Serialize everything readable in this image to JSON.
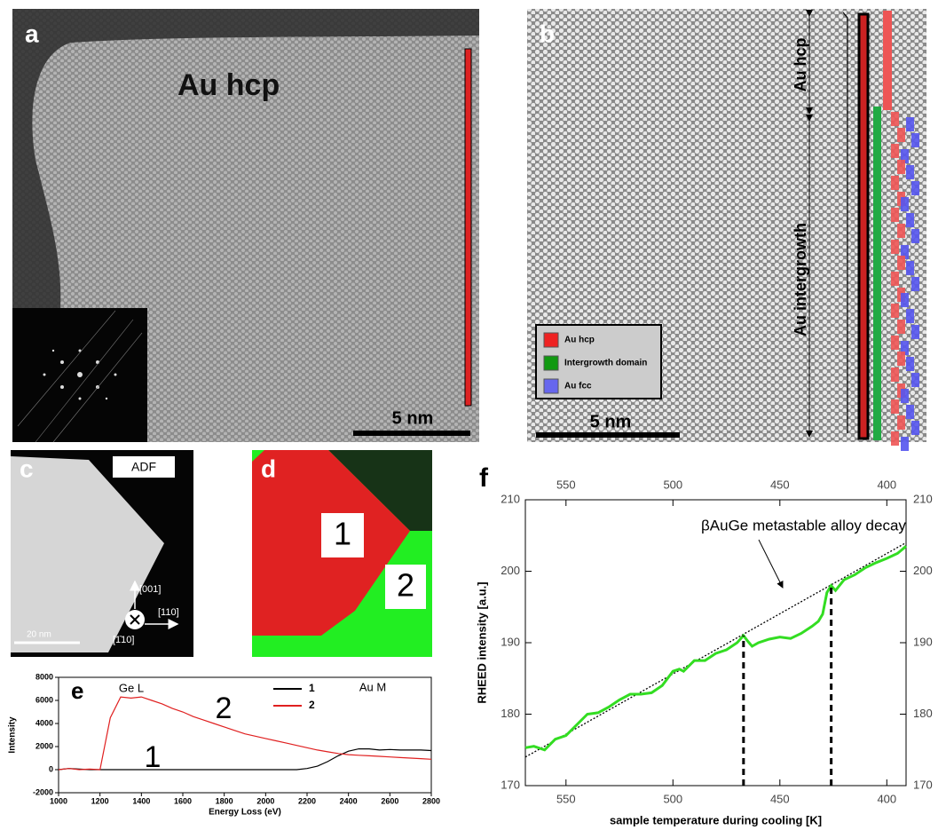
{
  "panels": {
    "a": {
      "label": "a",
      "title": "Au hcp",
      "scale": "5 nm"
    },
    "b": {
      "label": "b",
      "hcp_label": "Au hcp",
      "intergrowth_label": "Au intergrowth",
      "legend": [
        {
          "name": "Au hcp",
          "color": "#ee2222"
        },
        {
          "name": "Intergrowth domain",
          "color": "#119911"
        },
        {
          "name": "Au fcc",
          "color": "#6666ee"
        }
      ],
      "scale": "5 nm"
    },
    "c": {
      "label": "c",
      "mode": "ADF",
      "directions": [
        "[001]",
        "[110]",
        "[1̄10]"
      ],
      "scale": "20 nm"
    },
    "d": {
      "label": "d",
      "regions": [
        "1",
        "2"
      ]
    }
  },
  "chart_data": [
    {
      "type": "line",
      "panel_label": "e",
      "xlabel": "Energy Loss (eV)",
      "ylabel": "Intensity",
      "x": [
        1000,
        1050,
        1100,
        1150,
        1200,
        1250,
        1300,
        1350,
        1400,
        1450,
        1500,
        1550,
        1600,
        1650,
        1700,
        1750,
        1800,
        1850,
        1900,
        1950,
        2000,
        2050,
        2100,
        2150,
        2200,
        2250,
        2300,
        2350,
        2400,
        2450,
        2500,
        2550,
        2600,
        2650,
        2700,
        2750,
        2800
      ],
      "series": [
        {
          "name": "1",
          "color": "#000000",
          "values": [
            0,
            100,
            50,
            0,
            0,
            0,
            0,
            0,
            0,
            0,
            0,
            0,
            0,
            0,
            0,
            0,
            0,
            0,
            0,
            0,
            0,
            0,
            0,
            0,
            100,
            300,
            700,
            1200,
            1600,
            1800,
            1800,
            1700,
            1750,
            1700,
            1700,
            1700,
            1650
          ]
        },
        {
          "name": "2",
          "color": "#e02020",
          "values": [
            0,
            100,
            0,
            50,
            0,
            4500,
            6300,
            6200,
            6300,
            6000,
            5700,
            5300,
            5000,
            4600,
            4300,
            4000,
            3700,
            3400,
            3100,
            2900,
            2700,
            2500,
            2300,
            2100,
            1900,
            1700,
            1550,
            1400,
            1300,
            1250,
            1200,
            1150,
            1100,
            1050,
            1000,
            950,
            900
          ]
        }
      ],
      "annotations": [
        "Ge L",
        "Au M",
        "1",
        "2"
      ],
      "xlim": [
        1000,
        2800
      ],
      "xticks": [
        1000,
        1200,
        1400,
        1600,
        1800,
        2000,
        2200,
        2400,
        2600,
        2800
      ],
      "ylim": [
        -2000,
        8000
      ],
      "yticks": [
        -2000,
        0,
        2000,
        4000,
        6000,
        8000
      ]
    },
    {
      "type": "line",
      "panel_label": "f",
      "xlabel": "sample temperature during cooling [K]",
      "ylabel": "RHEED intensity [a.u.]",
      "annotation": "βAuGe metastable alloy decay",
      "x": [
        569,
        565,
        560,
        555,
        550,
        545,
        540,
        535,
        530,
        525,
        520,
        515,
        510,
        505,
        500,
        497,
        495,
        490,
        485,
        480,
        475,
        470,
        467,
        465,
        463,
        460,
        455,
        450,
        445,
        440,
        435,
        432,
        430,
        428,
        426,
        424,
        420,
        415,
        410,
        405,
        400,
        395,
        391
      ],
      "series": [
        {
          "color": "#33dd22",
          "values": [
            175.3,
            175.5,
            175,
            176.5,
            177,
            178.5,
            180,
            180.2,
            181,
            182,
            182.8,
            182.8,
            183,
            184,
            186,
            186.3,
            186,
            187.5,
            187.5,
            188.5,
            189,
            190,
            191,
            190.2,
            189.5,
            190,
            190.5,
            190.8,
            190.6,
            191.3,
            192.3,
            193,
            194,
            197,
            198,
            197.3,
            198.8,
            199.5,
            200.5,
            201.2,
            201.8,
            202.5,
            203.5
          ]
        }
      ],
      "reference": {
        "x": [
          569,
          391
        ],
        "values": [
          174,
          204
        ]
      },
      "markers": {
        "x": [
          467,
          426
        ],
        "values": [
          191,
          198
        ]
      },
      "xlim": [
        569,
        391
      ],
      "xticks": [
        550,
        500,
        450,
        400
      ],
      "x2ticks": [
        550,
        500,
        450,
        400
      ],
      "ylim": [
        170,
        210
      ],
      "yticks": [
        170,
        180,
        190,
        200,
        210
      ],
      "y2lim": [
        170,
        210
      ],
      "y2ticks": [
        170,
        180,
        190,
        200,
        210
      ]
    }
  ]
}
